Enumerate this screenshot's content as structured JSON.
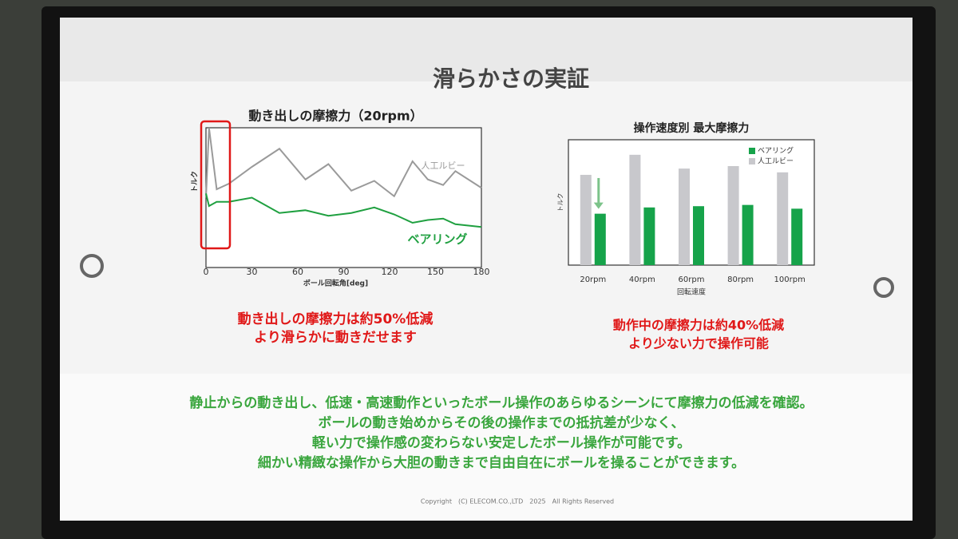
{
  "title": "滑らかさの実証",
  "chart_data": [
    {
      "type": "line",
      "title": "動き出しの摩擦力（20rpm）",
      "x_label": "ボール回転角[deg]",
      "y_label": "トルク",
      "x": [
        0,
        2,
        7,
        15,
        30,
        48,
        65,
        80,
        95,
        110,
        123,
        135,
        145,
        155,
        163,
        180
      ],
      "xlim": [
        0,
        180
      ],
      "xticks": [
        0,
        30,
        60,
        90,
        120,
        150,
        180
      ],
      "ylim": [
        0,
        100
      ],
      "series": [
        {
          "name": "人工ルビー",
          "color": "#9a9a9a",
          "values": [
            50,
            100,
            56,
            60,
            72,
            85,
            63,
            74,
            55,
            62,
            51,
            76,
            63,
            59,
            69,
            57
          ]
        },
        {
          "name": "ベアリング",
          "color": "#1fa040",
          "values": [
            53,
            44,
            47,
            47,
            50,
            39,
            41,
            37,
            39,
            43,
            38,
            32,
            34,
            35,
            31,
            29
          ]
        }
      ]
    },
    {
      "type": "bar",
      "title": "操作速度別 最大摩擦力",
      "x_label": "回転速度",
      "y_label": "トルク",
      "categories": [
        "20rpm",
        "40rpm",
        "60rpm",
        "80rpm",
        "100rpm"
      ],
      "ylim": [
        0,
        100
      ],
      "legend": "upper right",
      "series": [
        {
          "name": "ベアリング",
          "color": "#16a34a",
          "values": [
            41,
            46,
            47,
            48,
            45
          ]
        },
        {
          "name": "人工ルビー",
          "color": "#c8c8cc",
          "values": [
            72,
            88,
            77,
            79,
            74
          ]
        }
      ]
    }
  ],
  "captions": [
    [
      "動き出しの摩擦力は約50%低減",
      "より滑らかに動きだせます"
    ],
    [
      "動作中の摩擦力は約40%低減",
      "より少ない力で操作可能"
    ]
  ],
  "body": [
    "静止からの動き出し、低速・高速動作といったボール操作のあらゆるシーンにて摩擦力の低減を確認。",
    "ボールの動き始めからその後の操作までの抵抗差が少なく、",
    "軽い力で操作感の変わらない安定したボール操作が可能です。",
    "細かい精緻な操作から大胆の動きまで自由自在にボールを操ることができます。"
  ],
  "copyright": "Copyright　(C) ELECOM.CO.,LTD　2025　All Rights Reserved"
}
